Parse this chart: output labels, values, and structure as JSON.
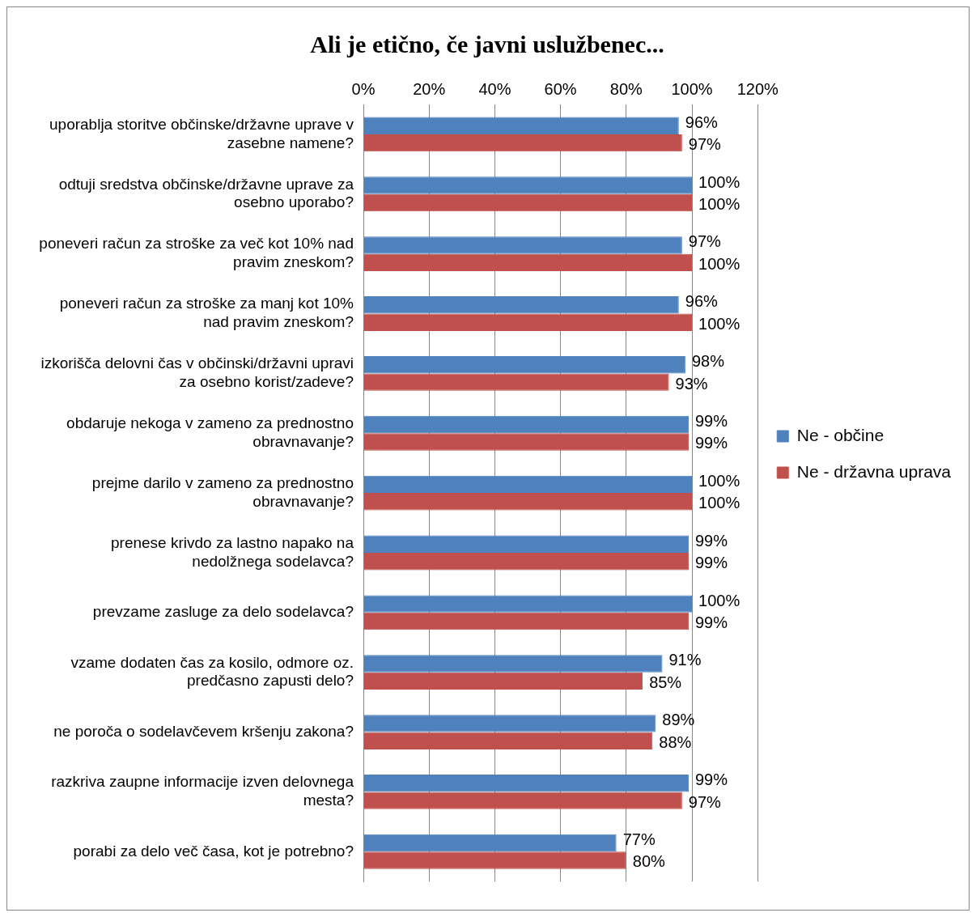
{
  "chart_data": {
    "type": "bar",
    "orientation": "horizontal",
    "title": "Ali je etično, če javni uslužbenec...",
    "categories": [
      "uporablja storitve občinske/državne uprave v zasebne namene?",
      "odtuji sredstva občinske/državne uprave za osebno uporabo?",
      "poneveri račun za stroške za več kot 10% nad pravim zneskom?",
      "poneveri račun za stroške za manj kot 10% nad pravim zneskom?",
      "izkorišča delovni čas v občinski/državni upravi za osebno korist/zadeve?",
      "obdaruje nekoga v zameno za prednostno obravnavanje?",
      "prejme darilo v zameno za prednostno obravnavanje?",
      "prenese krivdo za lastno napako na nedolžnega sodelavca?",
      "prevzame zasluge za delo sodelavca?",
      "vzame dodaten čas za kosilo, odmore oz. predčasno zapusti delo?",
      "ne poroča o sodelavčevem kršenju zakona?",
      "razkriva zaupne informacije izven delovnega mesta?",
      "porabi za delo več časa, kot je potrebno?"
    ],
    "series": [
      {
        "name": "Ne - občine",
        "color": "#4f81bd",
        "values": [
          96,
          100,
          97,
          96,
          98,
          99,
          100,
          99,
          100,
          91,
          89,
          99,
          77
        ],
        "value_labels": [
          "96%",
          "100%",
          "97%",
          "96%",
          "98%",
          "99%",
          "100%",
          "99%",
          "100%",
          "91%",
          "89%",
          "99%",
          "77%"
        ]
      },
      {
        "name": "Ne - državna uprava",
        "color": "#c0504d",
        "values": [
          97,
          100,
          100,
          100,
          93,
          99,
          100,
          99,
          99,
          85,
          88,
          97,
          80
        ],
        "value_labels": [
          "97%",
          "100%",
          "100%",
          "100%",
          "93%",
          "99%",
          "100%",
          "99%",
          "99%",
          "85%",
          "88%",
          "97%",
          "80%"
        ]
      }
    ],
    "xlim": [
      0,
      120
    ],
    "xticks": [
      {
        "value": 0,
        "label": "0%"
      },
      {
        "value": 20,
        "label": "20%"
      },
      {
        "value": 40,
        "label": "40%"
      },
      {
        "value": 60,
        "label": "60%"
      },
      {
        "value": 80,
        "label": "80%"
      },
      {
        "value": 100,
        "label": "100%"
      },
      {
        "value": 120,
        "label": "120%"
      }
    ],
    "grid": "x",
    "legend": "right"
  }
}
